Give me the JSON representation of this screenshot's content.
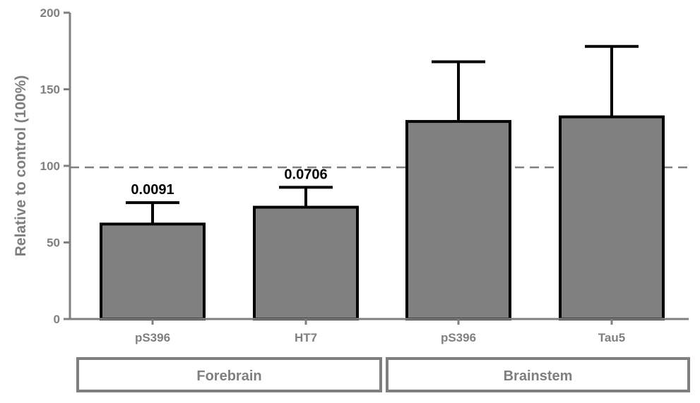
{
  "chart_data": {
    "type": "bar",
    "categories": [
      "pS396",
      "HT7",
      "pS396",
      "Tau5"
    ],
    "values": [
      62,
      73,
      129,
      132
    ],
    "errors": [
      14,
      13,
      39,
      46
    ],
    "annotations": [
      "0.0091",
      "0.0706",
      "",
      ""
    ],
    "groups": [
      {
        "label": "Forebrain",
        "categories": [
          0,
          1
        ]
      },
      {
        "label": "Brainstem",
        "categories": [
          2,
          3
        ]
      }
    ],
    "reference_line": 99,
    "ylabel": "Relative to control (100%)",
    "ylim": [
      0,
      200
    ],
    "yticks": [
      0,
      50,
      100,
      150,
      200
    ],
    "grid": false,
    "colors": {
      "bar": "#808080",
      "outline": "#000000",
      "axis": "#7f7f7f",
      "reference": "#7f7f7f"
    }
  }
}
